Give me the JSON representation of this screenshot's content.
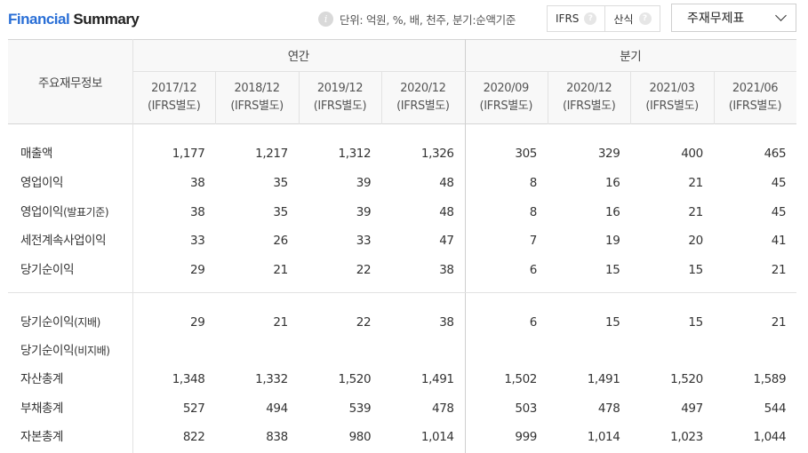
{
  "header": {
    "title_accent": "Financial",
    "title_rest": " Summary",
    "unit_text": "단위: 억원, %, 배, 천주, 분기:순액기준",
    "toggle": {
      "ifrs_label": "IFRS",
      "calc_label": "산식"
    },
    "statement_select": "주재무제표"
  },
  "table": {
    "corner_label": "주요재무정보",
    "groups": {
      "annual": "연간",
      "quarterly": "분기"
    },
    "periods": [
      {
        "date": "2017/12",
        "basis": "(IFRS별도)"
      },
      {
        "date": "2018/12",
        "basis": "(IFRS별도)"
      },
      {
        "date": "2019/12",
        "basis": "(IFRS별도)"
      },
      {
        "date": "2020/12",
        "basis": "(IFRS별도)"
      },
      {
        "date": "2020/09",
        "basis": "(IFRS별도)"
      },
      {
        "date": "2020/12",
        "basis": "(IFRS별도)"
      },
      {
        "date": "2021/03",
        "basis": "(IFRS별도)"
      },
      {
        "date": "2021/06",
        "basis": "(IFRS별도)"
      }
    ],
    "rows": [
      {
        "label": "매출액",
        "sub": "",
        "values": [
          "1,177",
          "1,217",
          "1,312",
          "1,326",
          "305",
          "329",
          "400",
          "465"
        ]
      },
      {
        "label": "영업이익",
        "sub": "",
        "values": [
          "38",
          "35",
          "39",
          "48",
          "8",
          "16",
          "21",
          "45"
        ]
      },
      {
        "label": "영업이익",
        "sub": "(발표기준)",
        "values": [
          "38",
          "35",
          "39",
          "48",
          "8",
          "16",
          "21",
          "45"
        ]
      },
      {
        "label": "세전계속사업이익",
        "sub": "",
        "values": [
          "33",
          "26",
          "33",
          "47",
          "7",
          "19",
          "20",
          "41"
        ]
      },
      {
        "label": "당기순이익",
        "sub": "",
        "values": [
          "29",
          "21",
          "22",
          "38",
          "6",
          "15",
          "15",
          "21"
        ]
      },
      {
        "label": "당기순이익",
        "sub": "(지배)",
        "values": [
          "29",
          "21",
          "22",
          "38",
          "6",
          "15",
          "15",
          "21"
        ]
      },
      {
        "label": "당기순이익",
        "sub": "(비지배)",
        "values": [
          "",
          "",
          "",
          "",
          "",
          "",
          "",
          ""
        ]
      },
      {
        "label": "자산총계",
        "sub": "",
        "values": [
          "1,348",
          "1,332",
          "1,520",
          "1,491",
          "1,502",
          "1,491",
          "1,520",
          "1,589"
        ]
      },
      {
        "label": "부채총계",
        "sub": "",
        "values": [
          "527",
          "494",
          "539",
          "478",
          "503",
          "478",
          "497",
          "544"
        ]
      },
      {
        "label": "자본총계",
        "sub": "",
        "values": [
          "822",
          "838",
          "980",
          "1,014",
          "999",
          "1,014",
          "1,023",
          "1,044"
        ]
      }
    ]
  }
}
